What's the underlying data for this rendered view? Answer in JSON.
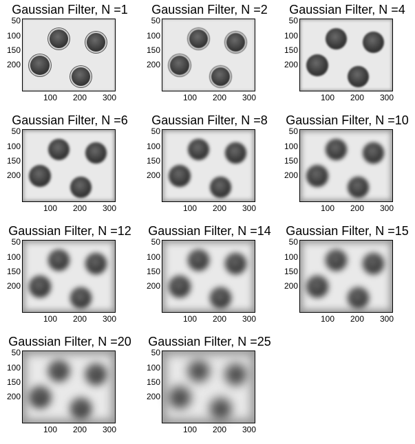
{
  "title_prefix": "Gaussian Filter, N =",
  "y_ticks": [
    "50",
    "100",
    "150",
    "200"
  ],
  "x_ticks": [
    "100",
    "200",
    "300"
  ],
  "colors": {
    "background": "#ffffff",
    "image_bg": "#e9e9e9",
    "coin": "#3a3a3a",
    "frame": "#000000"
  },
  "panels": [
    {
      "id": "n1",
      "title": "Gaussian Filter, N =1"
    },
    {
      "id": "n2",
      "title": "Gaussian Filter, N =2"
    },
    {
      "id": "n4",
      "title": "Gaussian Filter, N =4"
    },
    {
      "id": "n6",
      "title": "Gaussian Filter, N =6"
    },
    {
      "id": "n8",
      "title": "Gaussian Filter, N =8"
    },
    {
      "id": "n10",
      "title": "Gaussian Filter, N =10"
    },
    {
      "id": "n12",
      "title": "Gaussian Filter, N =12"
    },
    {
      "id": "n14",
      "title": "Gaussian Filter, N =14"
    },
    {
      "id": "n15",
      "title": "Gaussian Filter, N =15"
    },
    {
      "id": "n20",
      "title": "Gaussian Filter, N =20"
    },
    {
      "id": "n25",
      "title": "Gaussian Filter, N =25"
    }
  ]
}
